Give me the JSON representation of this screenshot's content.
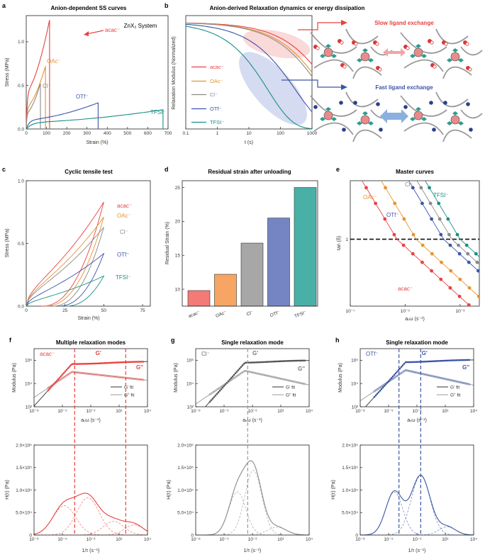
{
  "figure": {
    "panels": {
      "a": {
        "letter": "a",
        "title": "Anion-dependent SS curves",
        "note": "ZnX₂ System"
      },
      "b": {
        "letter": "b",
        "title": "Anion-derived Relaxation dynamics or energy dissipation",
        "slow_label": "Slow ligand exchange",
        "fast_label": "Fast ligand exchange"
      },
      "c": {
        "letter": "c",
        "title": "Cyclic tensile test"
      },
      "d": {
        "letter": "d",
        "title": "Residual strain after unloading"
      },
      "e": {
        "letter": "e",
        "title": "Master curves"
      },
      "f": {
        "letter": "f",
        "title": "Multiple relaxation modes",
        "sample": "acac⁻"
      },
      "g": {
        "letter": "g",
        "title": "Single relaxation mode",
        "sample": "Cl⁻"
      },
      "h": {
        "letter": "h",
        "title": "Single relaxation mode",
        "sample": "OTf⁻"
      }
    },
    "colors": {
      "acac": "#e8423f",
      "OAc": "#e8922e",
      "Cl": "#8a8a8a",
      "OTf": "#3c55a5",
      "TFSI": "#1a8f86"
    }
  },
  "chart_data": [
    {
      "id": "a",
      "type": "line",
      "title": "Anion-dependent SS curves",
      "xlabel": "Strain (%)",
      "ylabel": "Stress (MPa)",
      "xlim": [
        0,
        700
      ],
      "ylim": [
        0,
        1.3
      ],
      "xticks": [
        "0",
        "100",
        "200",
        "300",
        "400",
        "500",
        "600",
        "700"
      ],
      "yticks": [
        "0.0",
        "0.5",
        "1.0"
      ],
      "series": [
        {
          "name": "acac⁻",
          "key": "acac",
          "break_strain": 115,
          "break_stress": 1.25
        },
        {
          "name": "OAc⁻",
          "key": "OAc",
          "break_strain": 95,
          "break_stress": 0.72
        },
        {
          "name": "Cl⁻",
          "key": "Cl",
          "break_strain": 70,
          "break_stress": 0.52
        },
        {
          "name": "OTf⁻",
          "key": "OTf",
          "break_strain": 355,
          "break_stress": 0.3
        },
        {
          "name": "TFSI⁻",
          "key": "TFSI",
          "break_strain": 675,
          "break_stress": 0.22
        }
      ]
    },
    {
      "id": "b",
      "type": "line",
      "title": "Anion-derived Relaxation dynamics or energy dissipation",
      "xlabel": "t (s)",
      "ylabel": "Relaxation Modulus (Normalized)",
      "xscale": "log",
      "xlim": [
        0.1,
        1000
      ],
      "xticks": [
        "0.1",
        "1",
        "10",
        "100",
        "1000"
      ],
      "series": [
        {
          "name": "acac⁻",
          "key": "acac",
          "g_at_1000s": 0.82
        },
        {
          "name": "OAc⁻",
          "key": "OAc",
          "g_at_1000s": 0.72
        },
        {
          "name": "Cl⁻",
          "key": "Cl",
          "g_at_1000s": 0.68
        },
        {
          "name": "OTf⁻",
          "key": "OTf",
          "g_at_1000s": 0.25
        },
        {
          "name": "TFSI⁻",
          "key": "TFSI",
          "g_at_1000s": 0.0
        }
      ]
    },
    {
      "id": "c",
      "type": "line",
      "title": "Cyclic tensile test",
      "xlabel": "Strain (%)",
      "ylabel": "Stress (MPa)",
      "xlim": [
        0,
        80
      ],
      "ylim": [
        0,
        1.0
      ],
      "xticks": [
        "0",
        "25",
        "50",
        "75"
      ],
      "yticks": [
        "0.0",
        "0.5",
        "1.0"
      ],
      "series": [
        {
          "name": "acac⁻",
          "key": "acac",
          "max_stress": 0.83,
          "residual": 9.8
        },
        {
          "name": "OAc⁻",
          "key": "OAc",
          "max_stress": 0.71,
          "residual": 12.2
        },
        {
          "name": "Cl⁻",
          "key": "Cl",
          "max_stress": 0.63,
          "residual": 16.8
        },
        {
          "name": "OTf⁻",
          "key": "OTf",
          "max_stress": 0.42,
          "residual": 20.5
        },
        {
          "name": "TFSI⁻",
          "key": "TFSI",
          "max_stress": 0.24,
          "residual": 25.0
        }
      ]
    },
    {
      "id": "d",
      "type": "bar",
      "title": "Residual strain after unloading",
      "ylabel": "Residual Strain (%)",
      "ylim": [
        7.5,
        26
      ],
      "yticks": [
        "10",
        "15",
        "20",
        "25"
      ],
      "categories": [
        "acac⁻",
        "OAc⁻",
        "Cl⁻",
        "OTf⁻",
        "TFSI⁻"
      ],
      "keys": [
        "acac",
        "OAc",
        "Cl",
        "OTf",
        "TFSI"
      ],
      "values": [
        9.8,
        12.2,
        16.8,
        20.5,
        25.0
      ]
    },
    {
      "id": "e",
      "type": "scatter",
      "title": "Master curves",
      "xlabel": "aₜω (s⁻¹)",
      "ylabel": "tan (δ)",
      "xscale": "log",
      "yscale": "log",
      "xticks": [
        "10⁻⁷",
        "10⁻⁵",
        "10⁻³"
      ],
      "yticks": [
        "1"
      ],
      "reference_line": 1,
      "series": [
        {
          "name": "acac⁻",
          "key": "acac",
          "crossover_log_freq": -5.3
        },
        {
          "name": "OAc⁻",
          "key": "OAc",
          "crossover_log_freq": -4.6
        },
        {
          "name": "OTf⁻",
          "key": "OTf",
          "crossover_log_freq": -3.6
        },
        {
          "name": "Cl⁻",
          "key": "Cl",
          "crossover_log_freq": -3.3
        },
        {
          "name": "TFSI⁻",
          "key": "TFSI",
          "crossover_log_freq": -3.0
        }
      ]
    },
    {
      "id": "f",
      "type": "line",
      "title": "Multiple relaxation modes",
      "sample": "acac⁻",
      "key": "acac",
      "top": {
        "xlabel": "aₜω (s⁻¹)",
        "ylabel": "Modulus (Pa)",
        "legend": [
          "G' fit",
          "G'' fit"
        ],
        "labels": [
          "G'",
          "G''"
        ],
        "xticks": [
          "10⁻⁸",
          "10⁻⁵",
          "10⁻²",
          "10¹",
          "10⁴"
        ],
        "yticks": [
          "10²",
          "10⁴",
          "10⁶"
        ],
        "plateau_log": 5.9,
        "vlines_log": [
          -3.7,
          1.7
        ]
      },
      "bottom": {
        "xlabel": "1/τ (s⁻¹)",
        "ylabel": "H(τ) (Pa)",
        "xticks": [
          "10⁻⁸",
          "10⁻⁵",
          "10⁻²",
          "10¹",
          "10⁴"
        ],
        "yticks": [
          "0",
          "5.0×10⁴",
          "1.0×10⁵",
          "1.5×10⁵",
          "2.0×10⁵"
        ],
        "ylim": [
          0,
          200000
        ],
        "peak": 93000,
        "modes": [
          {
            "log": -4.8,
            "amp": 52000,
            "w": 1.2
          },
          {
            "log": -2.3,
            "amp": 66000,
            "w": 1.2
          },
          {
            "log": 0.4,
            "amp": 24000,
            "w": 1.1
          },
          {
            "log": 2.6,
            "amp": 18000,
            "w": 1.0
          }
        ]
      }
    },
    {
      "id": "g",
      "type": "line",
      "title": "Single relaxation mode",
      "sample": "Cl⁻",
      "key": "Cl",
      "top": {
        "xlabel": "aₜω (s⁻¹)",
        "ylabel": "Modulus (Pa)",
        "legend": [
          "G' fit",
          "G'' fit"
        ],
        "labels": [
          "G'",
          "G''"
        ],
        "xticks": [
          "10⁻⁸",
          "10⁻⁵",
          "10⁻²",
          "10¹",
          "10⁴"
        ],
        "yticks": [
          "10²",
          "10⁴",
          "10⁶"
        ],
        "plateau_log": 6.0,
        "vlines_log": [
          -2.5
        ]
      },
      "bottom": {
        "xlabel": "1/τ (s⁻¹)",
        "ylabel": "H(τ) (Pa)",
        "xticks": [
          "10⁻⁸",
          "10⁻⁵",
          "10⁻²",
          "10¹",
          "10⁴"
        ],
        "yticks": [
          "0",
          "5.0×10⁴",
          "1.0×10⁵",
          "1.5×10⁵",
          "2.0×10⁵"
        ],
        "ylim": [
          0,
          200000
        ],
        "peak": 165000,
        "modes": [
          {
            "log": -3.6,
            "amp": 88000,
            "w": 0.9
          },
          {
            "log": -1.9,
            "amp": 132000,
            "w": 0.9
          },
          {
            "log": 0.6,
            "amp": 16000,
            "w": 1.0
          }
        ]
      }
    },
    {
      "id": "h",
      "type": "line",
      "title": "Single relaxation mode",
      "sample": "OTf⁻",
      "key": "OTf",
      "top": {
        "xlabel": "aₜω (s⁻¹)",
        "ylabel": "Modulus (Pa)",
        "legend": [
          "G' fit",
          "G'' fit"
        ],
        "labels": [
          "G'",
          "G''"
        ],
        "xticks": [
          "10⁻⁸",
          "10⁻⁵",
          "10⁻²",
          "10¹",
          "10⁴"
        ],
        "yticks": [
          "10²",
          "10⁴",
          "10⁶"
        ],
        "plateau_log": 6.05,
        "vlines_log": [
          -3.9,
          -1.6
        ]
      },
      "bottom": {
        "xlabel": "1/τ (s⁻¹)",
        "ylabel": "H(τ) (Pa)",
        "xticks": [
          "10⁻⁸",
          "10⁻⁵",
          "10⁻²",
          "10¹",
          "10⁴"
        ],
        "yticks": [
          "0",
          "5.0×10⁴",
          "1.0×10⁵",
          "1.5×10⁵",
          "2.0×10⁵"
        ],
        "ylim": [
          0,
          200000
        ],
        "peak": 133000,
        "modes": [
          {
            "log": -4.4,
            "amp": 84000,
            "w": 0.9
          },
          {
            "log": -1.6,
            "amp": 116000,
            "w": 1.0
          },
          {
            "log": 1.2,
            "amp": 16000,
            "w": 0.9
          }
        ]
      }
    }
  ]
}
